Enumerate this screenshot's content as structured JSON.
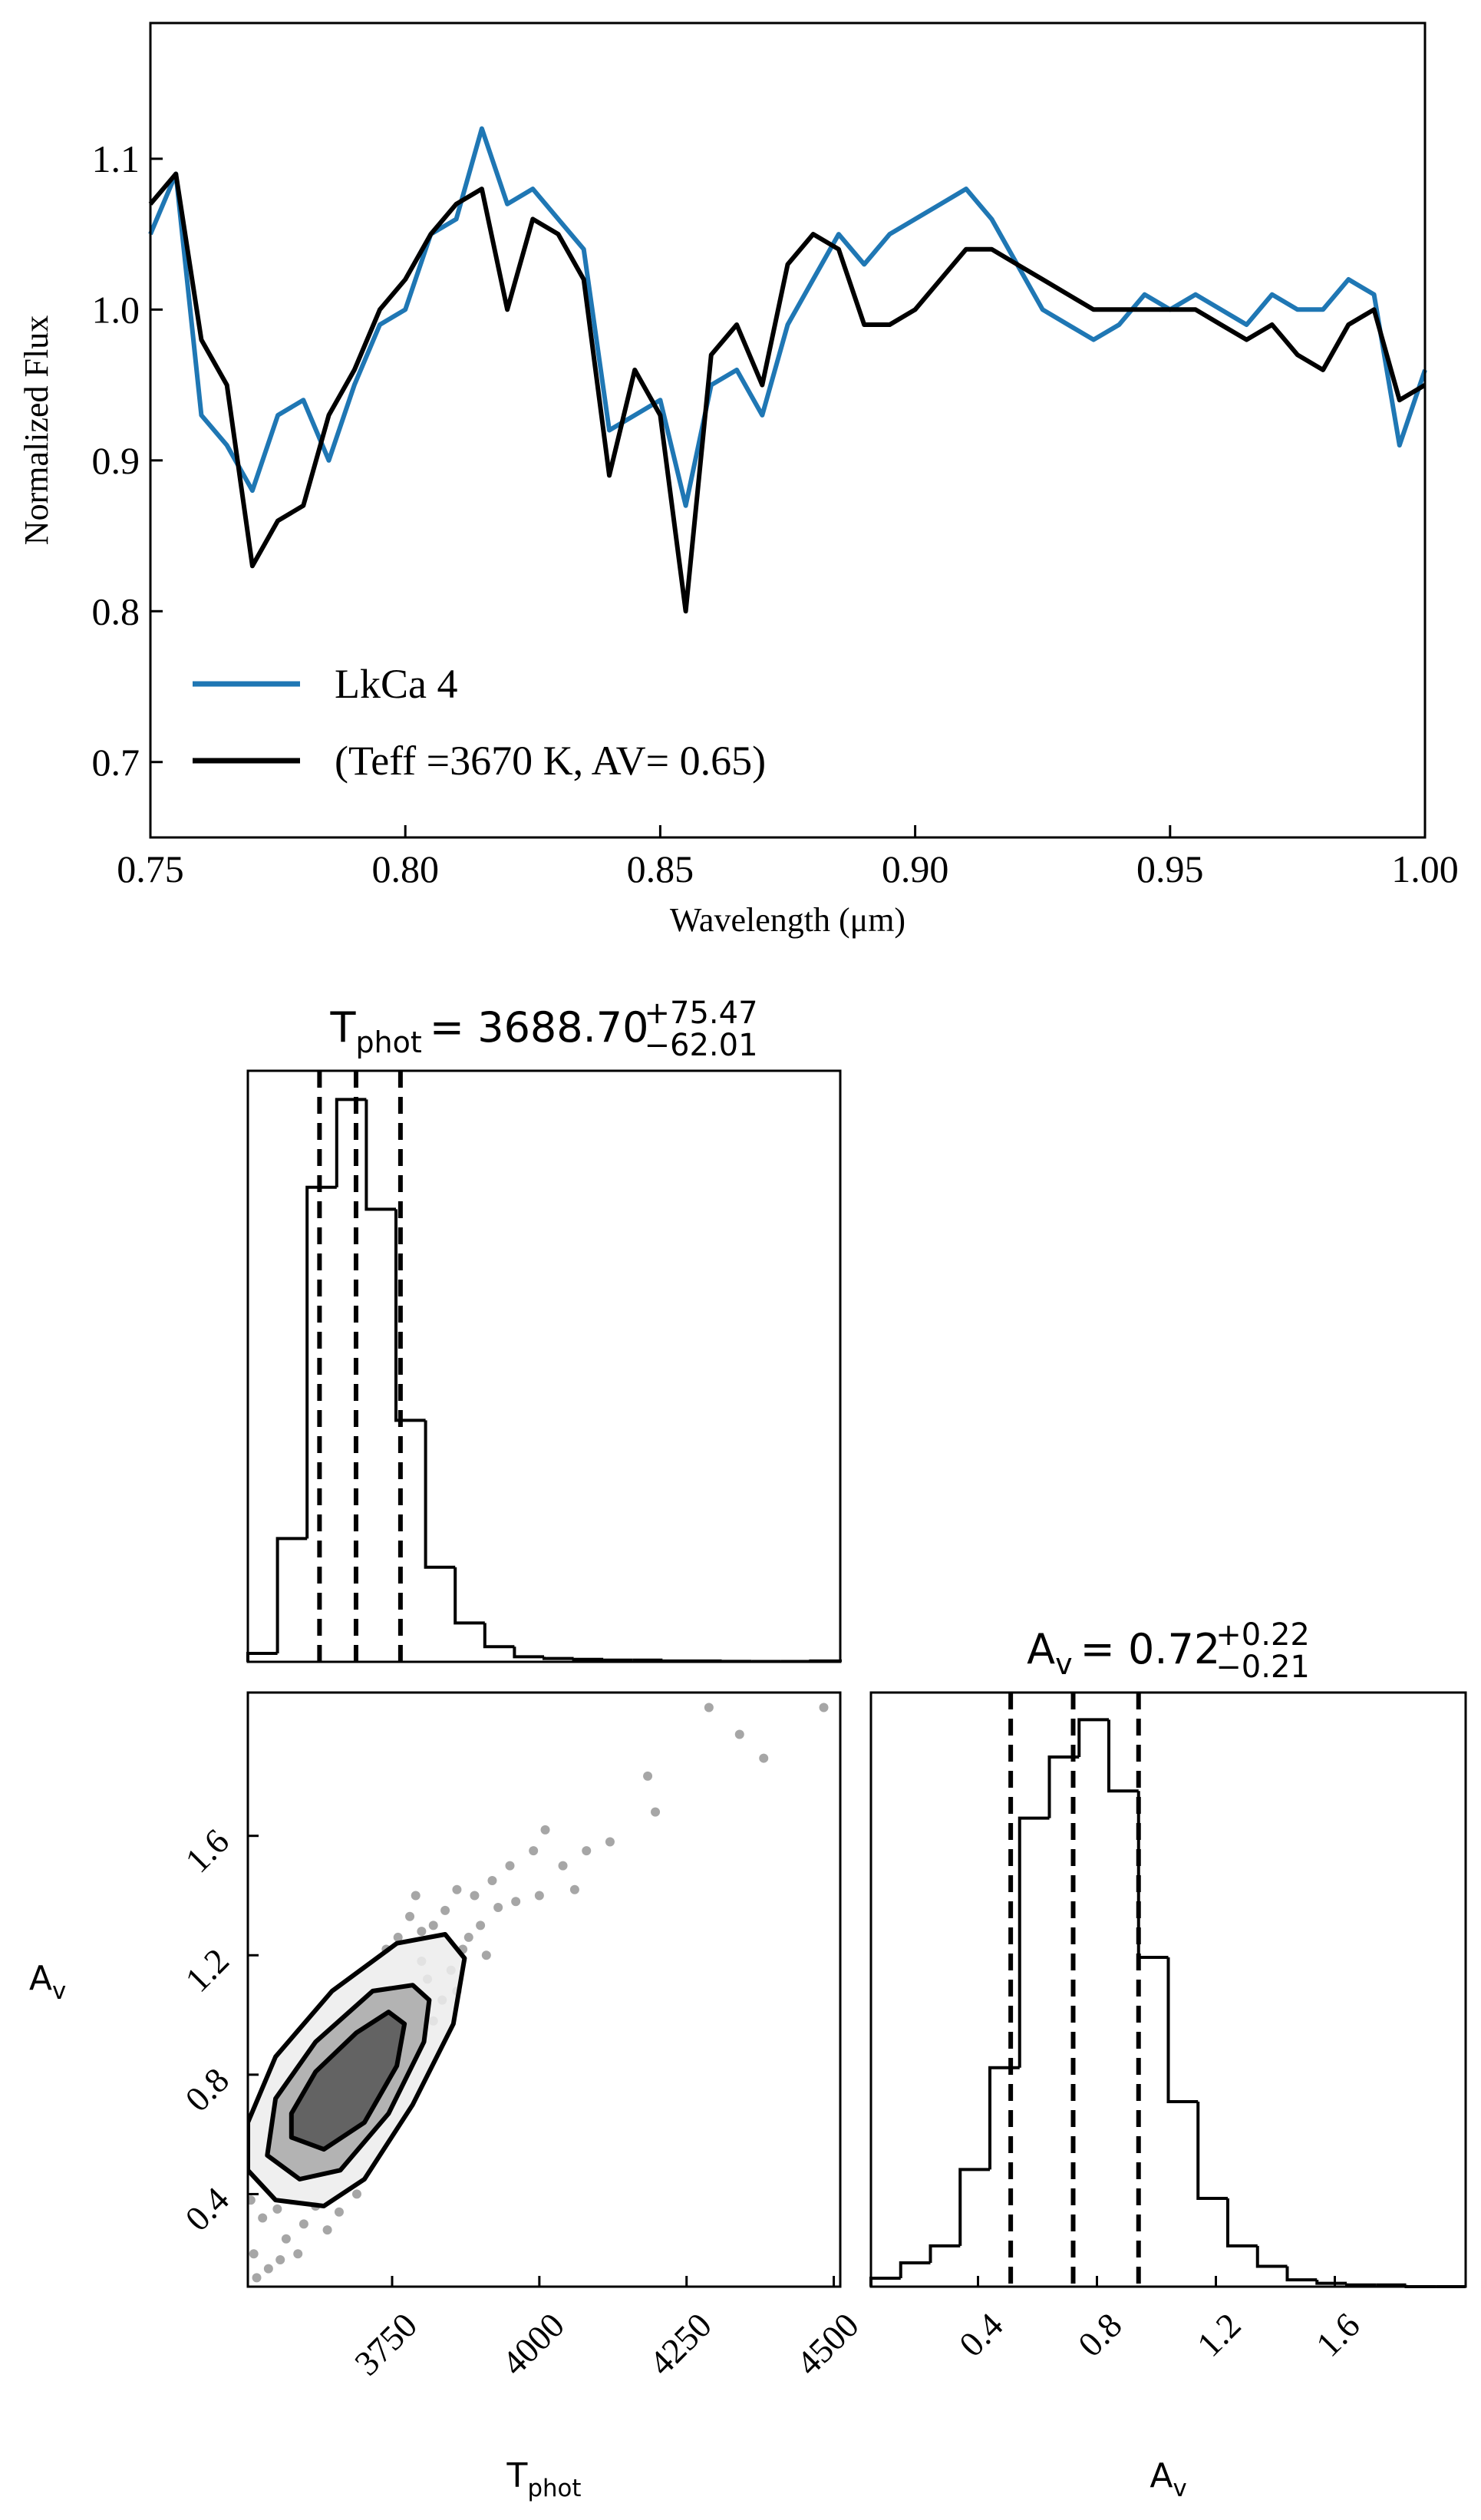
{
  "chart_data": [
    {
      "type": "line",
      "xlabel": "Wavelength (μm)",
      "ylabel": "Normalized Flux",
      "x": [
        0.75,
        0.755,
        0.76,
        0.765,
        0.77,
        0.775,
        0.78,
        0.785,
        0.79,
        0.795,
        0.8,
        0.805,
        0.81,
        0.815,
        0.82,
        0.825,
        0.83,
        0.835,
        0.84,
        0.845,
        0.85,
        0.855,
        0.86,
        0.865,
        0.87,
        0.875,
        0.88,
        0.885,
        0.89,
        0.895,
        0.9,
        0.905,
        0.91,
        0.915,
        0.92,
        0.925,
        0.93,
        0.935,
        0.94,
        0.945,
        0.95,
        0.955,
        0.96,
        0.965,
        0.97,
        0.975,
        0.98,
        0.985,
        0.99,
        0.995,
        1.0
      ],
      "series": [
        {
          "name": "LkCa 4",
          "color": "#1f77b4",
          "values": [
            1.05,
            1.09,
            0.93,
            0.91,
            0.88,
            0.93,
            0.94,
            0.9,
            0.95,
            0.99,
            1.0,
            1.05,
            1.06,
            1.12,
            1.07,
            1.08,
            1.06,
            1.04,
            0.92,
            0.93,
            0.94,
            0.87,
            0.95,
            0.96,
            0.93,
            0.99,
            1.02,
            1.05,
            1.03,
            1.05,
            1.06,
            1.07,
            1.08,
            1.06,
            1.03,
            1.0,
            0.99,
            0.98,
            0.99,
            1.01,
            1.0,
            1.01,
            1.0,
            0.99,
            1.01,
            1.0,
            1.0,
            1.02,
            1.01,
            0.91,
            0.96
          ]
        },
        {
          "name": "(Teff =3670 K, AV= 0.65)",
          "color": "#000000",
          "values": [
            1.07,
            1.09,
            0.98,
            0.95,
            0.83,
            0.86,
            0.87,
            0.93,
            0.96,
            1.0,
            1.02,
            1.05,
            1.07,
            1.08,
            1.0,
            1.06,
            1.05,
            1.02,
            0.89,
            0.96,
            0.93,
            0.8,
            0.97,
            0.99,
            0.95,
            1.03,
            1.05,
            1.04,
            0.99,
            0.99,
            1.0,
            1.02,
            1.04,
            1.04,
            1.03,
            1.02,
            1.01,
            1.0,
            1.0,
            1.0,
            1.0,
            1.0,
            0.99,
            0.98,
            0.99,
            0.97,
            0.96,
            0.99,
            1.0,
            0.94,
            0.95
          ]
        }
      ],
      "xlim": [
        0.75,
        1.0
      ],
      "xticks": [
        0.75,
        {
          "value": 0.8,
          "label": "0.80"
        },
        0.85,
        {
          "value": 0.9,
          "label": "0.90"
        },
        0.95,
        {
          "value": 1.0,
          "label": "1.00"
        }
      ],
      "ylim": [
        0.65,
        1.19
      ],
      "yticks": [
        0.7,
        0.8,
        0.9,
        {
          "value": 1.0,
          "label": "1.0"
        },
        1.1
      ],
      "legend": "lower left"
    },
    {
      "type": "histogram",
      "title": "T",
      "title_sub": "phot",
      "title_value": "= 3688.70",
      "err_plus": "+75.47",
      "err_minus": "−62.01",
      "bins": [
        3505,
        3555.3,
        3605.6,
        3655.9,
        3706.2,
        3756.5,
        3806.8,
        3857.1,
        3907.4,
        3957.7,
        4008,
        4058.3,
        4108.6,
        4158.9,
        4209.2,
        4259.5,
        4309.8,
        4360.1,
        4410.4,
        4460.7,
        4511
      ],
      "counts": [
        5,
        73,
        281,
        333,
        268,
        143,
        56,
        23,
        9,
        3,
        2,
        1.5,
        1,
        1,
        0.5,
        0.5,
        0.3,
        0.2,
        0.2,
        0.5
      ],
      "quantiles": [
        3626.69,
        3688.7,
        3764.17
      ],
      "xlim": [
        3505,
        4511
      ],
      "ylim": [
        0,
        350
      ],
      "color": "#000000"
    },
    {
      "type": "scatter",
      "xlabel": "T",
      "xlabel_sub": "phot",
      "ylabel": "A",
      "ylabel_sub": "v",
      "x": [
        4288,
        4483,
        4340,
        4381,
        4197,
        4184,
        4010,
        3990,
        3950,
        3920,
        3890,
        3860,
        3840,
        3820,
        3800,
        3780,
        3900,
        3870,
        3850,
        3835,
        3810,
        3760,
        3740,
        3960,
        4040,
        4080,
        3930,
        3880,
        3515,
        3540,
        3570,
        3600,
        3640,
        3530,
        3510,
        3555,
        3590,
        3620,
        3660,
        3520,
        3560,
        3690,
        3860,
        3820,
        3790,
        4120,
        4060,
        4000,
        3910,
        3800
      ],
      "y": [
        2.03,
        2.03,
        1.94,
        1.86,
        1.68,
        1.8,
        1.62,
        1.55,
        1.5,
        1.45,
        1.4,
        1.42,
        1.35,
        1.3,
        1.28,
        1.33,
        1.3,
        1.22,
        1.15,
        1.05,
        1.12,
        1.26,
        1.22,
        1.38,
        1.5,
        1.55,
        1.36,
        1.26,
        0.2,
        0.15,
        0.25,
        0.3,
        0.28,
        0.32,
        0.38,
        0.35,
        0.2,
        0.36,
        0.34,
        0.12,
        0.18,
        0.4,
        1.08,
        0.98,
        1.4,
        1.58,
        1.42,
        1.4,
        1.2,
        1.18
      ],
      "contours": [
        {
          "x": [
            3505,
            3552,
            3634,
            3703,
            3785,
            3854,
            3873,
            3840,
            3758,
            3648,
            3552,
            3505
          ],
          "y": [
            0.48,
            0.38,
            0.36,
            0.45,
            0.7,
            0.97,
            1.19,
            1.27,
            1.24,
            1.08,
            0.86,
            0.64
          ]
        },
        {
          "x": [
            3538,
            3593,
            3662,
            3744,
            3804,
            3813,
            3785,
            3717,
            3620,
            3552
          ],
          "y": [
            0.53,
            0.45,
            0.48,
            0.67,
            0.91,
            1.05,
            1.1,
            1.08,
            0.91,
            0.72
          ]
        },
        {
          "x": [
            3579,
            3634,
            3703,
            3758,
            3771,
            3744,
            3689,
            3620,
            3579
          ],
          "y": [
            0.59,
            0.55,
            0.64,
            0.83,
            0.97,
            1.01,
            0.94,
            0.81,
            0.67
          ]
        }
      ],
      "contour_colors": [
        "#ececec",
        "#a8a8a8",
        "#555555"
      ],
      "color": "#000000",
      "xlim": [
        3505,
        4511
      ],
      "xticks": [
        3750,
        4000,
        4250,
        4500
      ],
      "ylim": [
        0.09,
        2.08
      ],
      "yticks": [
        0.4,
        0.8,
        1.2,
        1.6
      ]
    },
    {
      "type": "histogram",
      "title": "A",
      "title_sub": "v",
      "title_value": "= 0.72",
      "err_plus": "+0.22",
      "err_minus": "−0.21",
      "bins": [
        0.04,
        0.14,
        0.24,
        0.34,
        0.44,
        0.54,
        0.64,
        0.74,
        0.84,
        0.94,
        1.04,
        1.14,
        1.24,
        1.34,
        1.44,
        1.54,
        1.64,
        1.74,
        1.84,
        1.94,
        2.04
      ],
      "counts": [
        5,
        14,
        24,
        69,
        129,
        276,
        312,
        334,
        292,
        194,
        109,
        52,
        24,
        12,
        4,
        2,
        1,
        1,
        0,
        0
      ],
      "quantiles": [
        0.51,
        0.72,
        0.94
      ],
      "xlim": [
        0.04,
        2.04
      ],
      "ylim": [
        0,
        350
      ],
      "xticks": [
        0.4,
        0.8,
        1.2,
        1.6
      ],
      "color": "#000000"
    }
  ]
}
